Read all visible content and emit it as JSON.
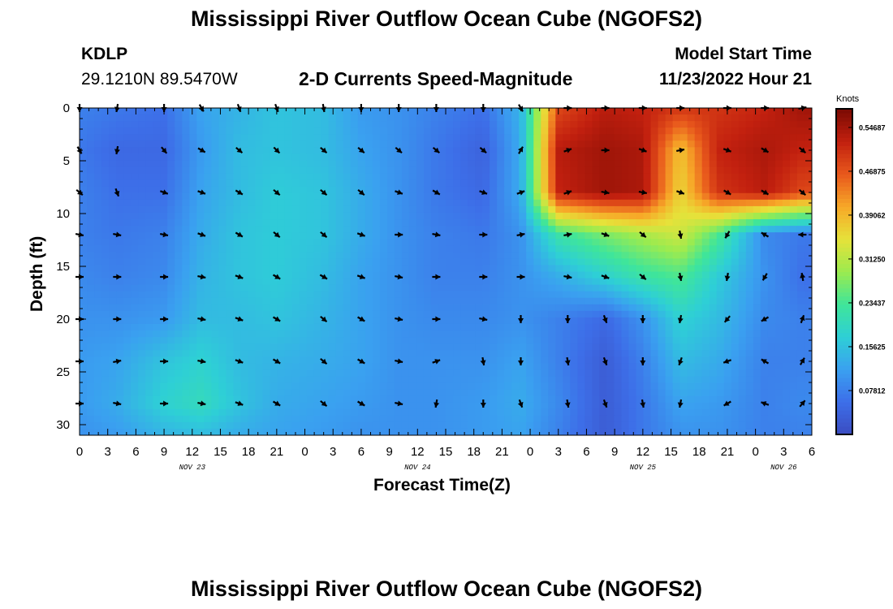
{
  "title": "Mississippi River Outflow Ocean Cube (NGOFS2)",
  "title_repeat": "Mississippi River Outflow Ocean Cube (NGOFS2)",
  "station": {
    "id": "KDLP",
    "coords": "29.1210N  89.5470W"
  },
  "variable": "2-D Currents Speed-Magnitude",
  "model_start": {
    "label": "Model Start Time",
    "value": "11/23/2022 Hour 21"
  },
  "chart_data": {
    "type": "heatmap",
    "title": "2-D Currents Speed-Magnitude",
    "xlabel": "Forecast Time(Z)",
    "ylabel": "Depth (ft)",
    "x_tick_labels": [
      "0",
      "3",
      "6",
      "9",
      "12",
      "15",
      "18",
      "21",
      "0",
      "3",
      "6",
      "9",
      "12",
      "15",
      "18",
      "21",
      "0",
      "3",
      "6",
      "9",
      "12",
      "15",
      "18",
      "21",
      "0",
      "3",
      "6"
    ],
    "x_range_hours": [
      0,
      78
    ],
    "date_labels": [
      {
        "text": "NOV 23",
        "hour": 12
      },
      {
        "text": "NOV 24",
        "hour": 36
      },
      {
        "text": "NOV 25",
        "hour": 60
      },
      {
        "text": "NOV 26",
        "hour": 75
      }
    ],
    "y_ticks": [
      0,
      5,
      10,
      15,
      20,
      25,
      30
    ],
    "y_range": [
      0,
      31
    ],
    "colorbar": {
      "unit": "Knots",
      "range": [
        0,
        0.58
      ],
      "tick_labels": [
        "0.54687",
        "0.46875",
        "0.39062",
        "0.31250",
        "0.23437",
        "0.15625",
        "0.07812"
      ],
      "tick_values": [
        0.54687,
        0.46875,
        0.39062,
        0.3125,
        0.23437,
        0.15625,
        0.07812
      ]
    },
    "colormap": [
      "#3B4CC0",
      "#3D6EE8",
      "#3AA0F0",
      "#2ECFD6",
      "#3FE59A",
      "#9BEB4F",
      "#E6E23A",
      "#F7A828",
      "#E8581C",
      "#C2200F",
      "#7A0A03"
    ],
    "grid_times": [
      0,
      4,
      9,
      13,
      17,
      21,
      26,
      30,
      34,
      38,
      43,
      47,
      51,
      56,
      60,
      64,
      68,
      73,
      77
    ],
    "grid_depths": [
      0,
      4,
      8,
      12,
      16,
      20,
      24,
      28,
      31
    ],
    "speed_grid": [
      [
        0.08,
        0.07,
        0.06,
        0.12,
        0.14,
        0.16,
        0.15,
        0.11,
        0.1,
        0.08,
        0.06,
        0.14,
        0.48,
        0.53,
        0.52,
        0.5,
        0.5,
        0.52,
        0.55
      ],
      [
        0.07,
        0.05,
        0.05,
        0.11,
        0.15,
        0.16,
        0.15,
        0.12,
        0.1,
        0.07,
        0.04,
        0.13,
        0.53,
        0.55,
        0.54,
        0.38,
        0.52,
        0.54,
        0.52
      ],
      [
        0.08,
        0.06,
        0.06,
        0.12,
        0.15,
        0.17,
        0.16,
        0.13,
        0.1,
        0.07,
        0.05,
        0.13,
        0.52,
        0.55,
        0.54,
        0.36,
        0.5,
        0.53,
        0.48
      ],
      [
        0.08,
        0.07,
        0.08,
        0.13,
        0.16,
        0.17,
        0.16,
        0.13,
        0.1,
        0.08,
        0.07,
        0.1,
        0.22,
        0.27,
        0.3,
        0.33,
        0.24,
        0.09,
        0.07
      ],
      [
        0.09,
        0.08,
        0.09,
        0.14,
        0.16,
        0.17,
        0.15,
        0.12,
        0.1,
        0.08,
        0.08,
        0.1,
        0.13,
        0.18,
        0.22,
        0.24,
        0.17,
        0.1,
        0.06
      ],
      [
        0.1,
        0.1,
        0.11,
        0.15,
        0.15,
        0.16,
        0.14,
        0.12,
        0.1,
        0.09,
        0.09,
        0.1,
        0.08,
        0.05,
        0.1,
        0.18,
        0.15,
        0.09,
        0.08
      ],
      [
        0.11,
        0.12,
        0.16,
        0.18,
        0.15,
        0.14,
        0.13,
        0.12,
        0.1,
        0.1,
        0.1,
        0.12,
        0.08,
        0.03,
        0.08,
        0.15,
        0.13,
        0.08,
        0.08
      ],
      [
        0.11,
        0.13,
        0.18,
        0.2,
        0.16,
        0.13,
        0.12,
        0.11,
        0.1,
        0.1,
        0.11,
        0.13,
        0.09,
        0.03,
        0.07,
        0.12,
        0.11,
        0.08,
        0.09
      ],
      [
        0.1,
        0.11,
        0.14,
        0.15,
        0.13,
        0.12,
        0.11,
        0.1,
        0.1,
        0.1,
        0.11,
        0.12,
        0.08,
        0.03,
        0.07,
        0.1,
        0.1,
        0.08,
        0.08
      ]
    ],
    "vector_times": [
      0,
      4,
      9,
      13,
      17,
      21,
      26,
      30,
      34,
      38,
      43,
      47,
      52,
      56,
      60,
      64,
      69,
      73,
      77
    ],
    "vector_depths": [
      0,
      4,
      8,
      12,
      16,
      20,
      24,
      28
    ],
    "vector_angles_deg": [
      [
        90,
        100,
        90,
        60,
        70,
        70,
        80,
        90,
        90,
        90,
        90,
        60,
        0,
        0,
        0,
        0,
        0,
        0,
        -10
      ],
      [
        60,
        100,
        50,
        30,
        40,
        45,
        40,
        40,
        40,
        40,
        40,
        -60,
        -20,
        0,
        20,
        -10,
        20,
        30,
        40
      ],
      [
        40,
        70,
        20,
        20,
        30,
        40,
        40,
        40,
        20,
        30,
        20,
        -20,
        -20,
        10,
        10,
        20,
        30,
        30,
        40
      ],
      [
        10,
        10,
        10,
        20,
        30,
        40,
        40,
        20,
        0,
        10,
        0,
        -10,
        -10,
        20,
        40,
        80,
        120,
        -150,
        180
      ],
      [
        0,
        0,
        0,
        10,
        20,
        30,
        30,
        20,
        10,
        0,
        0,
        0,
        10,
        20,
        40,
        80,
        100,
        120,
        -100
      ],
      [
        0,
        0,
        0,
        10,
        20,
        30,
        40,
        30,
        10,
        0,
        10,
        90,
        90,
        70,
        90,
        100,
        130,
        150,
        -70
      ],
      [
        0,
        -10,
        0,
        10,
        20,
        30,
        40,
        30,
        10,
        -20,
        80,
        90,
        80,
        70,
        90,
        110,
        160,
        -150,
        -60
      ],
      [
        0,
        10,
        0,
        10,
        20,
        30,
        40,
        30,
        10,
        100,
        90,
        70,
        80,
        70,
        80,
        100,
        150,
        -160,
        -50
      ]
    ]
  }
}
